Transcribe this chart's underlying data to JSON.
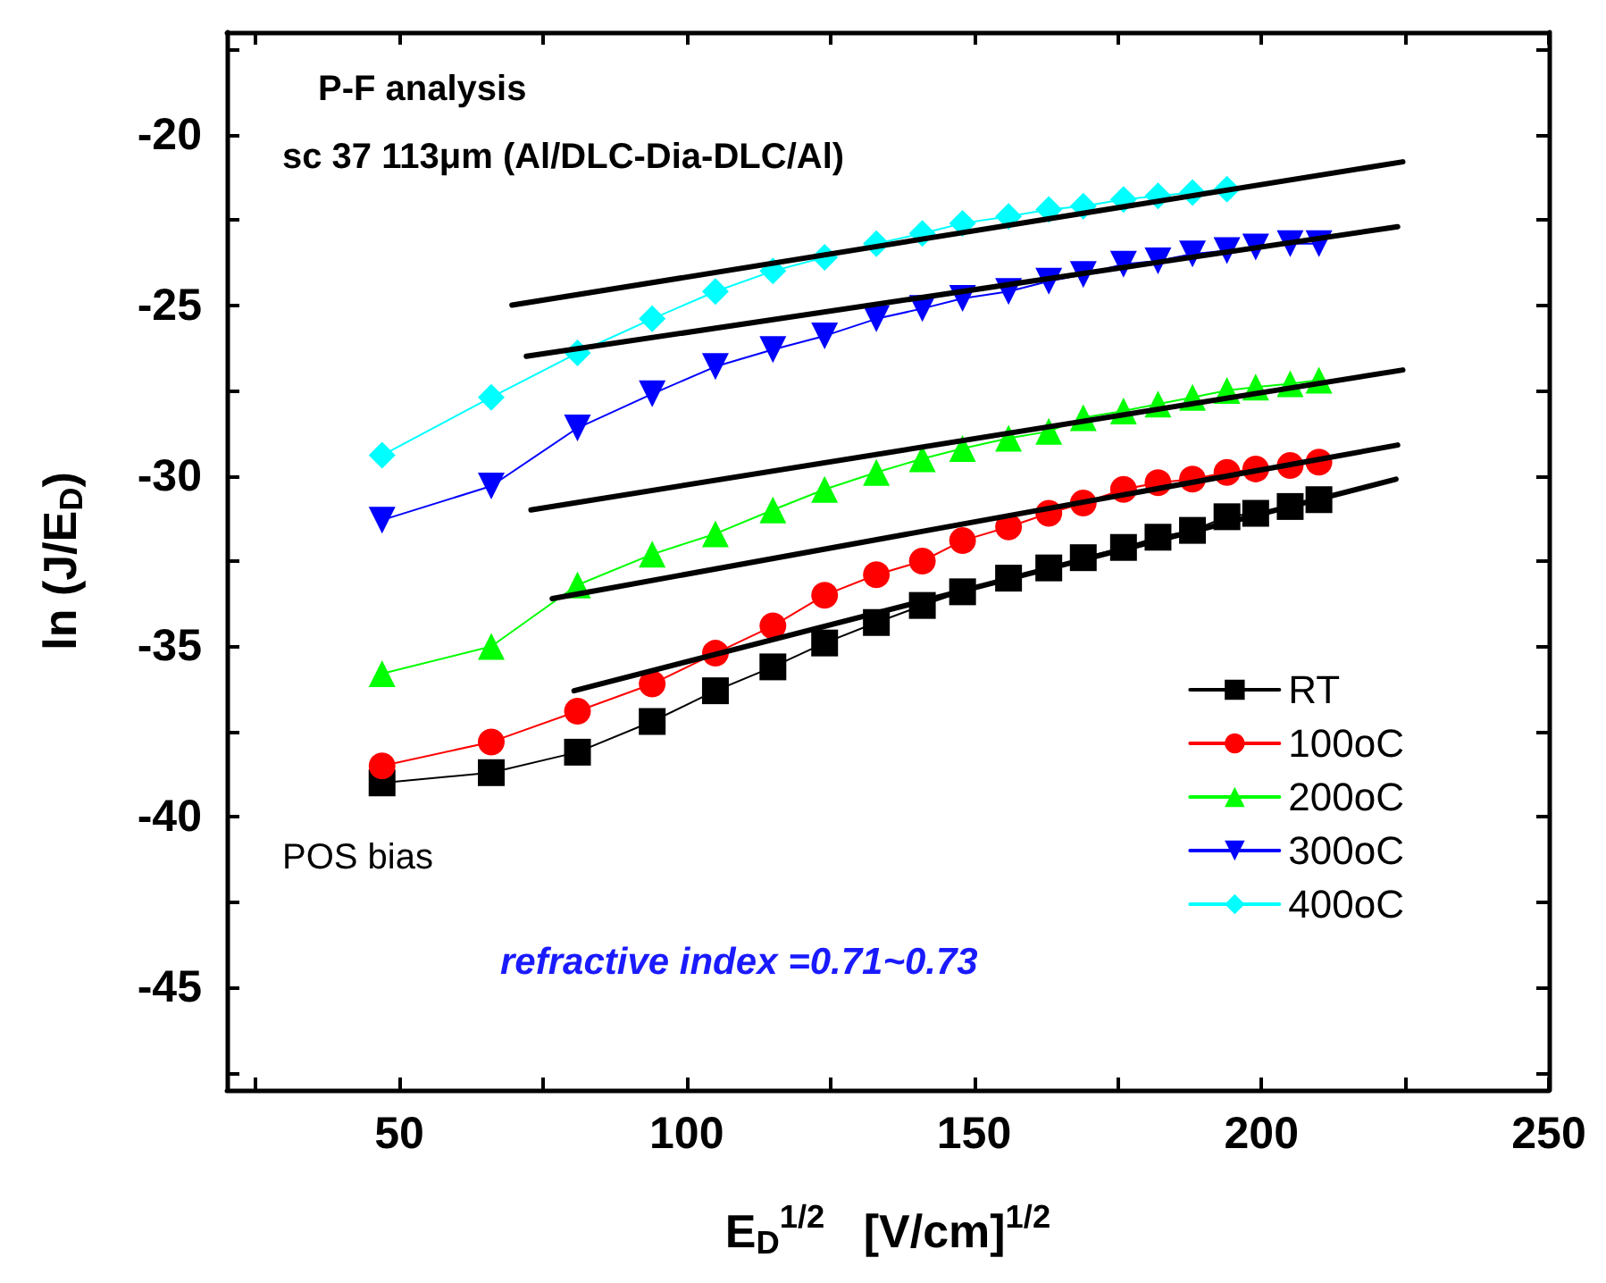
{
  "chart_data": {
    "type": "line",
    "xlabel": "E$_{D}$$^{1/2}$   [V/cm]$^{1/2}$",
    "ylabel": "ln (J/E$_{D}$)",
    "annotations": [
      "P-F analysis",
      "sc 37 113μm (Al/DLC-Dia-DLC/Al)",
      "POS bias",
      "refractive index =0.71~0.73"
    ],
    "x": [
      47,
      66,
      81,
      94,
      105,
      115,
      124,
      133,
      141,
      148,
      156,
      163,
      169,
      176,
      182,
      188,
      194,
      199,
      205,
      210
    ],
    "series": [
      {
        "name": "RT",
        "color": "#000000",
        "marker": "square",
        "values": [
          -39.0,
          -38.7,
          -38.1,
          -37.2,
          -36.3,
          -35.6,
          -34.9,
          -34.3,
          -33.8,
          -33.4,
          -33.0,
          -32.7,
          -32.4,
          -32.1,
          -31.8,
          -31.6,
          -31.2,
          -31.1,
          -30.9,
          -30.7
        ]
      },
      {
        "name": "100oC",
        "color": "#ff0000",
        "marker": "circle",
        "values": [
          -38.5,
          -37.8,
          -36.9,
          -36.1,
          -35.2,
          -34.4,
          -33.5,
          -32.9,
          -32.5,
          -31.9,
          -31.5,
          -31.1,
          -30.8,
          -30.4,
          -30.2,
          -30.1,
          -29.9,
          -29.8,
          -29.7,
          -29.6
        ]
      },
      {
        "name": "200oC",
        "color": "#00ff00",
        "marker": "triangle",
        "values": [
          -35.8,
          -35.0,
          -33.2,
          -32.3,
          -31.7,
          -31.0,
          -30.4,
          -29.9,
          -29.5,
          -29.2,
          -28.9,
          -28.7,
          -28.3,
          -28.1,
          -27.9,
          -27.7,
          -27.5,
          -27.4,
          -27.3,
          -27.2
        ]
      },
      {
        "name": "300oC",
        "color": "#0000ff",
        "marker": "triangle-down",
        "values": [
          -31.3,
          -30.3,
          -28.6,
          -27.6,
          -26.8,
          -26.3,
          -25.9,
          -25.4,
          -25.1,
          -24.8,
          -24.6,
          -24.3,
          -24.1,
          -23.8,
          -23.7,
          -23.5,
          -23.4,
          -23.3,
          -23.2,
          -23.2
        ]
      },
      {
        "name": "400oC",
        "color": "#00ffff",
        "marker": "diamond",
        "x": [
          47,
          66,
          81,
          94,
          105,
          115,
          124,
          133,
          141,
          148,
          156,
          163,
          169,
          176,
          182,
          188,
          194
        ],
        "values": [
          -29.4,
          -27.7,
          -26.4,
          -25.4,
          -24.6,
          -24.0,
          -23.6,
          -23.2,
          -22.9,
          -22.6,
          -22.4,
          -22.2,
          -22.1,
          -21.9,
          -21.8,
          -21.7,
          -21.6
        ]
      },
      {
        "type": "line",
        "color": "#000000",
        "marker": "none",
        "x": [
          69.6,
          224.6
        ],
        "values": [
          -25.0,
          -20.8
        ]
      },
      {
        "type": "line",
        "color": "#000000",
        "marker": "none",
        "x": [
          72.1,
          223.7
        ],
        "values": [
          -26.5,
          -22.7
        ]
      },
      {
        "type": "line",
        "color": "#000000",
        "marker": "none",
        "x": [
          72.9,
          224.6
        ],
        "values": [
          -31.0,
          -26.9
        ]
      },
      {
        "type": "line",
        "color": "#000000",
        "marker": "none",
        "x": [
          76.6,
          223.7
        ],
        "values": [
          -33.6,
          -29.1
        ]
      },
      {
        "type": "line",
        "color": "#000000",
        "marker": "none",
        "x": [
          80.4,
          223.4
        ],
        "values": [
          -36.3,
          -30.1
        ]
      }
    ],
    "xlim": [
      20,
      250
    ],
    "xticks": [
      {
        "value": 25,
        "label": null
      },
      50,
      {
        "value": 75,
        "label": null
      },
      100,
      {
        "value": 125,
        "label": null
      },
      150,
      {
        "value": 175,
        "label": null
      },
      200,
      {
        "value": 225,
        "label": null
      },
      250
    ],
    "ylim": [
      -48,
      -17
    ],
    "yticks": [
      {
        "value": -47.5,
        "label": null
      },
      -45,
      {
        "value": -42.5,
        "label": null
      },
      -40,
      {
        "value": -37.5,
        "label": null
      },
      -35,
      {
        "value": -32.5,
        "label": null
      },
      -30,
      {
        "value": -27.5,
        "label": null
      },
      -25,
      {
        "value": -22.5,
        "label": null
      },
      -20,
      {
        "value": -17.5,
        "label": null
      }
    ],
    "grid": false,
    "legend": "bottom right",
    "line_style": "solid"
  }
}
